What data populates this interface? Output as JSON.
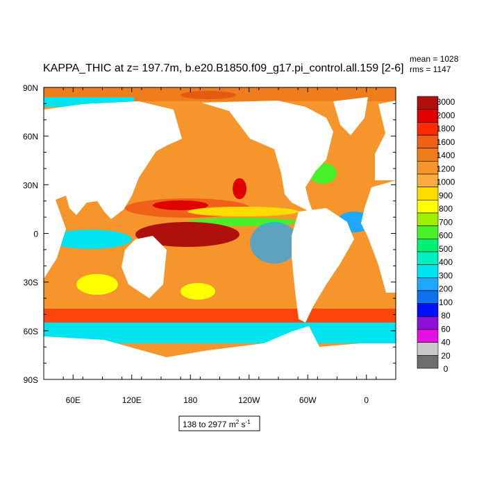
{
  "title": "KAPPA_THIC at z= 197.7m, b.e20.B1850.f09_g17.pi_control.all.159 [2-6]",
  "stats": {
    "mean": "mean = 1028",
    "rms": "rms = 1147"
  },
  "axes": {
    "lat_labels": [
      "90N",
      "60N",
      "30N",
      "0",
      "30S",
      "60S",
      "90S"
    ],
    "lon_labels": [
      "60E",
      "120E",
      "180",
      "120W",
      "60W",
      "0"
    ]
  },
  "colorbar": {
    "labels": [
      "3000",
      "2000",
      "1800",
      "1600",
      "1400",
      "1200",
      "1000",
      "900",
      "800",
      "700",
      "600",
      "500",
      "400",
      "300",
      "200",
      "100",
      "80",
      "60",
      "40",
      "20",
      "0"
    ],
    "colors": [
      "#b0100c",
      "#e00000",
      "#ff2a00",
      "#f06018",
      "#f07d1c",
      "#f5952c",
      "#f8ac3c",
      "#ffdc00",
      "#ffff00",
      "#9cf000",
      "#48f028",
      "#00f070",
      "#00f0c0",
      "#00e4f0",
      "#1ea8ff",
      "#1070f0",
      "#0010ff",
      "#8c10d8",
      "#e410e4",
      "#c8c8c8",
      "#6e6e6e"
    ]
  },
  "footer": {
    "text": "138 to 2977 m",
    "sup1": "2",
    "mid": " s",
    "sup2": "-1"
  }
}
